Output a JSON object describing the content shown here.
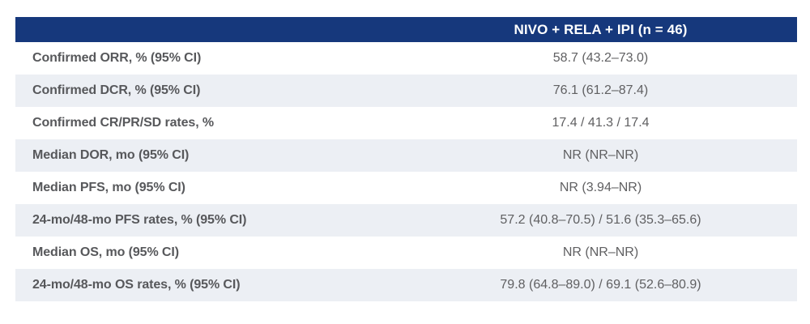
{
  "chart_data": {
    "type": "table",
    "title": "",
    "columns": [
      "",
      "NIVO + RELA + IPI (n = 46)"
    ],
    "rows": [
      {
        "label": "Confirmed ORR, % (95% CI)",
        "value": "58.7 (43.2–73.0)"
      },
      {
        "label": "Confirmed DCR, % (95% CI)",
        "value": "76.1 (61.2–87.4)"
      },
      {
        "label": "Confirmed CR/PR/SD rates, %",
        "value": "17.4 / 41.3 / 17.4"
      },
      {
        "label": "Median DOR, mo (95% CI)",
        "value": "NR (NR–NR)"
      },
      {
        "label": "Median PFS, mo (95% CI)",
        "value": "NR (3.94–NR)"
      },
      {
        "label": "24-mo/48-mo PFS rates, % (95% CI)",
        "value": "57.2 (40.8–70.5) / 51.6 (35.3–65.6)"
      },
      {
        "label": "Median OS, mo (95% CI)",
        "value": "NR (NR–NR)"
      },
      {
        "label": "24-mo/48-mo OS rates, % (95% CI)",
        "value": "79.8 (64.8–89.0) / 69.1 (52.6–80.9)"
      }
    ],
    "layout": {
      "header_row": true,
      "alternating_row_shading": true,
      "value_alignment": "center",
      "label_alignment": "left"
    }
  },
  "colors": {
    "header_bg": "#16387C",
    "header_text": "#FFFFFF",
    "alt_row_bg": "#ECEFF4",
    "label_text": "#57585B",
    "value_text": "#606062"
  }
}
